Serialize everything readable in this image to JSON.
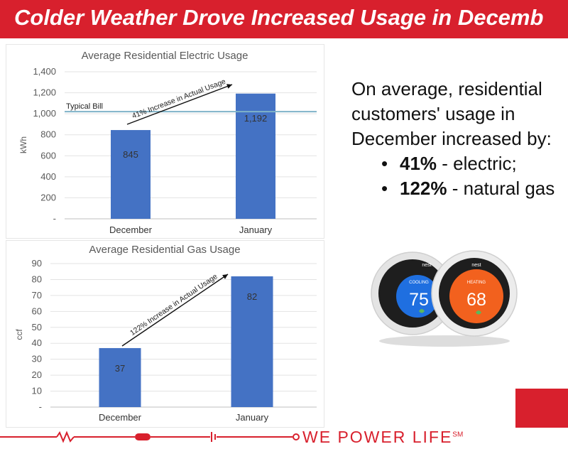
{
  "banner": {
    "title": "Colder Weather Drove Increased Usage in Decemb"
  },
  "colors": {
    "brand_red": "#d8202d",
    "bar_blue": "#4472c4",
    "reference_line": "#7fb3c8",
    "axis_text": "#595959"
  },
  "summary": {
    "lines": [
      "On average, residential",
      "customers' usage in",
      "December increased by:"
    ],
    "bullets": [
      {
        "value": "41%",
        "text": " - electric;"
      },
      {
        "value": "122%",
        "text": " - natural gas"
      }
    ]
  },
  "thermostats": [
    {
      "brand": "nest",
      "mode": "COOLING",
      "temp": "75",
      "color": "#1f6fe0"
    },
    {
      "brand": "nest",
      "mode": "HEATING",
      "temp": "68",
      "color": "#f2611e"
    }
  ],
  "footer": {
    "tagline": "WE POWER LIFE",
    "mark": "SM"
  },
  "chart_data": [
    {
      "type": "bar",
      "title": "Average Residential Electric Usage",
      "ylabel": "kWh",
      "xlabel": "",
      "categories": [
        "December",
        "January"
      ],
      "values": [
        845,
        1192
      ],
      "data_labels": [
        "845",
        "1,192"
      ],
      "ylim": [
        0,
        1400
      ],
      "ticks": [
        0,
        200,
        400,
        600,
        800,
        1000,
        1200,
        1400
      ],
      "tick_labels": [
        "-",
        "200",
        "400",
        "600",
        "800",
        "1,000",
        "1,200",
        "1,400"
      ],
      "grid": true,
      "reference_line": {
        "label": "Typical Bill",
        "value": 1020
      },
      "annotation": "41% Increase in Actual Usage"
    },
    {
      "type": "bar",
      "title": "Average Residential Gas Usage",
      "ylabel": "ccf",
      "xlabel": "",
      "categories": [
        "December",
        "January"
      ],
      "values": [
        37,
        82
      ],
      "data_labels": [
        "37",
        "82"
      ],
      "ylim": [
        0,
        90
      ],
      "ticks": [
        0,
        10,
        20,
        30,
        40,
        50,
        60,
        70,
        80,
        90
      ],
      "tick_labels": [
        "-",
        "10",
        "20",
        "30",
        "40",
        "50",
        "60",
        "70",
        "80",
        "90"
      ],
      "grid": true,
      "annotation": "122% Increase in Actual Usage"
    }
  ]
}
